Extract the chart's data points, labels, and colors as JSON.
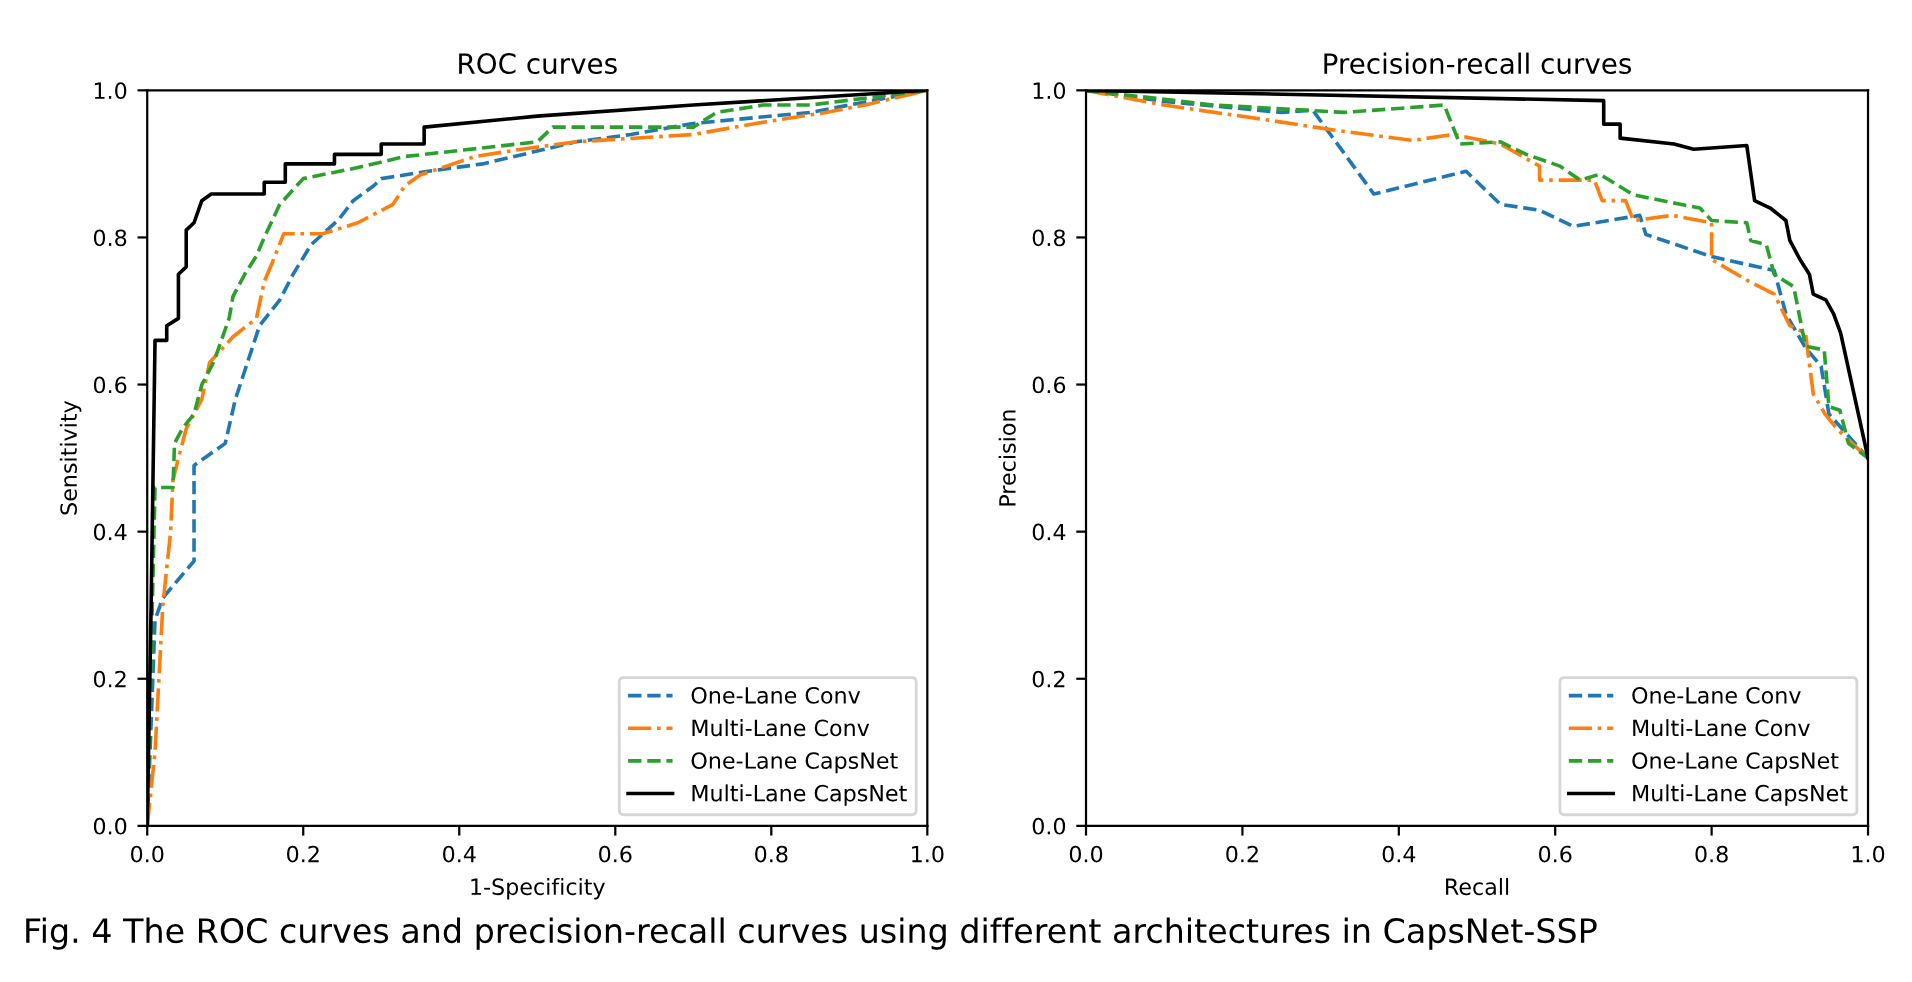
{
  "chart_data": [
    {
      "type": "line",
      "title": "ROC curves",
      "annotations": [
        "Fig. 4 The ROC curves and precision-recall curves using different architectures in CapsNet-SSP"
      ],
      "xlabel": "1-Specificity",
      "ylabel": "Sensitivity",
      "xlim": [
        0,
        1
      ],
      "ylim": [
        0,
        1
      ],
      "xticks": [
        {
          "value": 0,
          "label": "0.0"
        },
        {
          "value": 0.2,
          "label": "0.2"
        },
        {
          "value": 0.4,
          "label": "0.4"
        },
        {
          "value": 0.6,
          "label": "0.6"
        },
        {
          "value": 0.8,
          "label": "0.8"
        },
        {
          "value": 1,
          "label": "1.0"
        }
      ],
      "yticks": [
        {
          "value": 0,
          "label": "0.0"
        },
        {
          "value": 0.2,
          "label": "0.2"
        },
        {
          "value": 0.4,
          "label": "0.4"
        },
        {
          "value": 0.6,
          "label": "0.6"
        },
        {
          "value": 0.8,
          "label": "0.8"
        },
        {
          "value": 1,
          "label": "1.0"
        }
      ],
      "grid": false,
      "legend": "bottom right",
      "marker": "none",
      "series": [
        {
          "name": "One-Lane Conv",
          "color": "#1f77b4",
          "line_style": "dashed",
          "x": [
            0,
            0.01,
            0.02,
            0.06,
            0.06,
            0.1,
            0.113,
            0.144,
            0.17,
            0.187,
            0.21,
            0.246,
            0.264,
            0.29,
            0.3,
            0.36,
            0.43,
            0.51,
            0.55,
            0.62,
            0.7,
            0.75,
            0.85,
            0.9,
            1
          ],
          "values": [
            0,
            0.28,
            0.31,
            0.36,
            0.49,
            0.52,
            0.58,
            0.68,
            0.715,
            0.75,
            0.79,
            0.825,
            0.85,
            0.87,
            0.88,
            0.89,
            0.9,
            0.92,
            0.93,
            0.94,
            0.955,
            0.96,
            0.97,
            0.98,
            1
          ]
        },
        {
          "name": "Multi-Lane Conv",
          "color": "#ff7f0e",
          "line_style": "dashdot",
          "x": [
            0,
            0.01,
            0.015,
            0.02,
            0.03,
            0.033,
            0.04,
            0.05,
            0.07,
            0.08,
            0.11,
            0.14,
            0.15,
            0.16,
            0.175,
            0.225,
            0.27,
            0.315,
            0.33,
            0.35,
            0.42,
            0.48,
            0.55,
            0.7,
            0.78,
            0.87,
            0.92,
            1
          ],
          "values": [
            0,
            0.1,
            0.2,
            0.3,
            0.4,
            0.47,
            0.5,
            0.54,
            0.58,
            0.63,
            0.665,
            0.69,
            0.74,
            0.765,
            0.805,
            0.805,
            0.82,
            0.845,
            0.87,
            0.885,
            0.91,
            0.92,
            0.93,
            0.94,
            0.955,
            0.97,
            0.98,
            1
          ]
        },
        {
          "name": "One-Lane CapsNet",
          "color": "#2ca02c",
          "line_style": "dashed",
          "x": [
            0,
            0.01,
            0.033,
            0.035,
            0.045,
            0.06,
            0.07,
            0.085,
            0.105,
            0.11,
            0.125,
            0.14,
            0.15,
            0.17,
            0.2,
            0.27,
            0.33,
            0.5,
            0.52,
            0.7,
            0.73,
            0.79,
            0.85,
            1
          ],
          "values": [
            0,
            0.46,
            0.46,
            0.52,
            0.54,
            0.56,
            0.6,
            0.63,
            0.69,
            0.72,
            0.75,
            0.775,
            0.8,
            0.845,
            0.88,
            0.895,
            0.91,
            0.93,
            0.95,
            0.95,
            0.97,
            0.98,
            0.98,
            1
          ]
        },
        {
          "name": "Multi-Lane CapsNet",
          "color": "#000000",
          "line_style": "solid",
          "x": [
            0,
            0.005,
            0.01,
            0.025,
            0.025,
            0.04,
            0.04,
            0.05,
            0.05,
            0.06,
            0.07,
            0.082,
            0.15,
            0.15,
            0.177,
            0.177,
            0.24,
            0.24,
            0.3,
            0.3,
            0.355,
            0.355,
            0.5,
            0.7,
            1
          ],
          "values": [
            0,
            0.3,
            0.66,
            0.66,
            0.68,
            0.69,
            0.75,
            0.76,
            0.81,
            0.82,
            0.85,
            0.859,
            0.859,
            0.875,
            0.875,
            0.9,
            0.9,
            0.913,
            0.913,
            0.927,
            0.927,
            0.95,
            0.965,
            0.98,
            1
          ]
        }
      ]
    },
    {
      "type": "line",
      "title": "Precision-recall curves",
      "xlabel": "Recall",
      "ylabel": "Precision",
      "xlim": [
        0,
        1
      ],
      "ylim": [
        0,
        1
      ],
      "xticks": [
        {
          "value": 0,
          "label": "0.0"
        },
        {
          "value": 0.2,
          "label": "0.2"
        },
        {
          "value": 0.4,
          "label": "0.4"
        },
        {
          "value": 0.6,
          "label": "0.6"
        },
        {
          "value": 0.8,
          "label": "0.8"
        },
        {
          "value": 1,
          "label": "1.0"
        }
      ],
      "yticks": [
        {
          "value": 0,
          "label": "0.0"
        },
        {
          "value": 0.2,
          "label": "0.2"
        },
        {
          "value": 0.4,
          "label": "0.4"
        },
        {
          "value": 0.6,
          "label": "0.6"
        },
        {
          "value": 0.8,
          "label": "0.8"
        },
        {
          "value": 1,
          "label": "1.0"
        }
      ],
      "grid": false,
      "legend": "bottom right",
      "marker": "none",
      "series": [
        {
          "name": "One-Lane Conv",
          "color": "#1f77b4",
          "line_style": "dashed",
          "x": [
            0,
            0.1,
            0.25,
            0.29,
            0.368,
            0.486,
            0.53,
            0.58,
            0.623,
            0.708,
            0.716,
            0.8,
            0.88,
            0.895,
            0.92,
            0.94,
            0.95,
            1
          ],
          "values": [
            1,
            0.985,
            0.97,
            0.973,
            0.859,
            0.89,
            0.845,
            0.837,
            0.815,
            0.83,
            0.804,
            0.774,
            0.755,
            0.696,
            0.65,
            0.625,
            0.56,
            0.5
          ]
        },
        {
          "name": "Multi-Lane Conv",
          "color": "#ff7f0e",
          "line_style": "dashdot",
          "x": [
            0,
            0.1,
            0.23,
            0.317,
            0.418,
            0.47,
            0.53,
            0.58,
            0.58,
            0.65,
            0.66,
            0.69,
            0.7,
            0.75,
            0.8,
            0.8,
            0.845,
            0.88,
            0.9,
            0.92,
            0.93,
            0.945,
            0.96,
            1
          ],
          "values": [
            1,
            0.98,
            0.96,
            0.946,
            0.932,
            0.94,
            0.927,
            0.897,
            0.878,
            0.878,
            0.85,
            0.85,
            0.823,
            0.83,
            0.82,
            0.77,
            0.742,
            0.723,
            0.68,
            0.67,
            0.587,
            0.56,
            0.54,
            0.5
          ]
        },
        {
          "name": "One-Lane CapsNet",
          "color": "#2ca02c",
          "line_style": "dashed",
          "x": [
            0,
            0.164,
            0.33,
            0.458,
            0.478,
            0.53,
            0.563,
            0.606,
            0.632,
            0.657,
            0.7,
            0.76,
            0.785,
            0.8,
            0.845,
            0.85,
            0.87,
            0.88,
            0.905,
            0.92,
            0.944,
            0.95,
            0.964,
            0.975,
            1
          ],
          "values": [
            1,
            0.98,
            0.97,
            0.98,
            0.927,
            0.93,
            0.913,
            0.897,
            0.878,
            0.886,
            0.858,
            0.845,
            0.84,
            0.823,
            0.82,
            0.796,
            0.79,
            0.75,
            0.733,
            0.652,
            0.647,
            0.57,
            0.565,
            0.52,
            0.5
          ]
        },
        {
          "name": "Multi-Lane CapsNet",
          "color": "#000000",
          "line_style": "solid",
          "x": [
            0,
            0.662,
            0.662,
            0.683,
            0.683,
            0.752,
            0.777,
            0.845,
            0.855,
            0.875,
            0.895,
            0.9,
            0.913,
            0.925,
            0.93,
            0.946,
            0.956,
            0.965,
            1
          ],
          "values": [
            1,
            0.986,
            0.954,
            0.954,
            0.935,
            0.927,
            0.92,
            0.925,
            0.85,
            0.84,
            0.823,
            0.796,
            0.77,
            0.75,
            0.723,
            0.715,
            0.696,
            0.67,
            0.5
          ]
        }
      ]
    }
  ]
}
